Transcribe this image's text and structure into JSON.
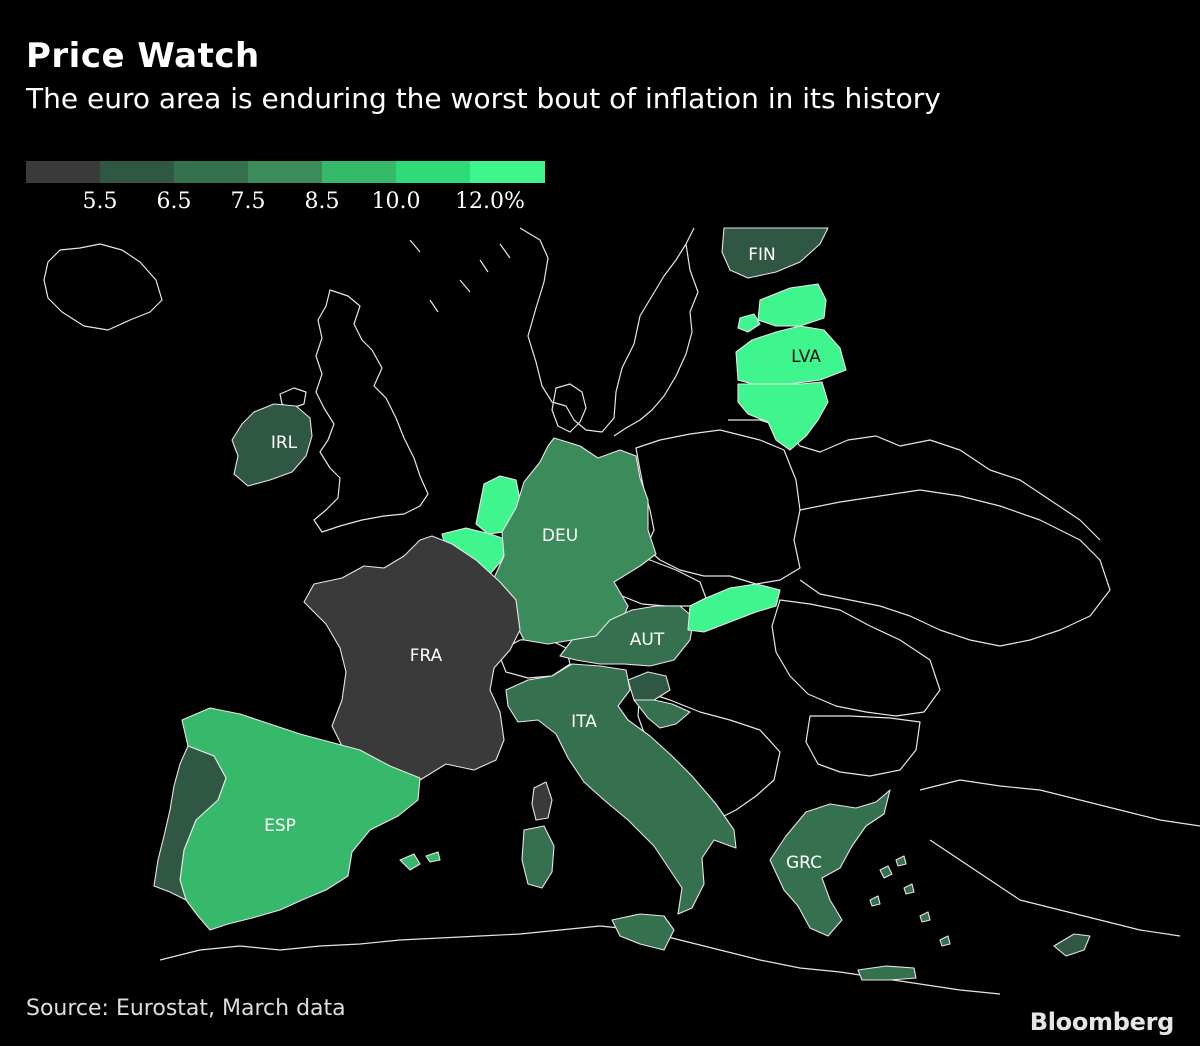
{
  "header": {
    "title": "Price Watch",
    "subtitle": "The euro area is enduring the worst bout of inflation in its history"
  },
  "legend": {
    "colors": [
      "#3a3a3a",
      "#2f5744",
      "#36714f",
      "#3c8c5b",
      "#37b96c",
      "#2fda78",
      "#3ff58e"
    ],
    "ticks": [
      "5.5",
      "6.5",
      "7.5",
      "8.5",
      "10.0",
      "12.0%"
    ]
  },
  "map": {
    "colors": {
      "no_data": "#000000",
      "border": "#e6e6e6",
      "bin_lowest": "#3a3a3a",
      "bin_low": "#2f5744",
      "bin_midlow": "#36714f",
      "bin_mid": "#3c8c5b",
      "bin_midhigh": "#37b96c",
      "bin_high": "#2fda78",
      "bin_highest": "#3ff58e"
    },
    "country_labels": {
      "fin": "FIN",
      "lva": "LVA",
      "irl": "IRL",
      "deu": "DEU",
      "fra": "FRA",
      "aut": "AUT",
      "ita": "ITA",
      "esp": "ESP",
      "grc": "GRC"
    }
  },
  "footer": {
    "source": "Source: Eurostat, March data",
    "brand": "Bloomberg"
  }
}
